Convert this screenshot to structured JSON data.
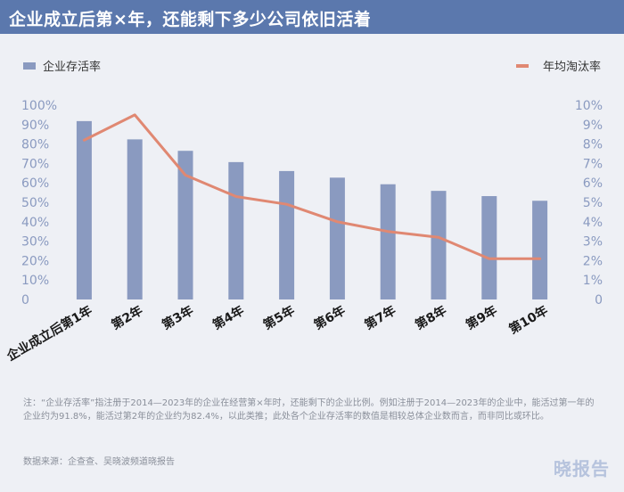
{
  "header": {
    "title": "企业成立后第×年，还能剩下多少公司依旧活着"
  },
  "chart_data": {
    "type": "bar+line",
    "categories": [
      "企业成立后第1年",
      "第2年",
      "第3年",
      "第4年",
      "第5年",
      "第6年",
      "第7年",
      "第8年",
      "第9年",
      "第10年"
    ],
    "series": [
      {
        "name": "企业存活率",
        "type": "bar",
        "axis": "left",
        "values": [
          91.8,
          82.4,
          76.5,
          70.7,
          66.1,
          62.7,
          59.3,
          55.9,
          53.2,
          50.8
        ]
      },
      {
        "name": "年均淘汰率",
        "type": "line",
        "axis": "right",
        "values": [
          8.2,
          9.5,
          6.4,
          5.3,
          4.9,
          4.0,
          3.5,
          3.2,
          2.1,
          2.1
        ]
      }
    ],
    "yleft_ticks": [
      "100%",
      "90%",
      "80%",
      "70%",
      "60%",
      "50%",
      "40%",
      "30%",
      "20%",
      "10%",
      "0"
    ],
    "yright_ticks": [
      "10%",
      "9%",
      "8%",
      "7%",
      "6%",
      "5%",
      "4%",
      "3%",
      "2%",
      "1%",
      "0"
    ],
    "yleft_lim": [
      0,
      100
    ],
    "yright_lim": [
      0,
      10
    ],
    "legend_placement": "top-left and top-right",
    "colors": {
      "bar": "#8a9ac0",
      "line": "#e08872",
      "header": "#5b78ad"
    }
  },
  "footnote": "注：“企业存活率”指注册于2014—2023年的企业在经营第×年时，还能剩下的企业比例。例如注册于2014—2023年的企业中，能活过第一年的企业约为91.8%，能活过第2年的企业约为82.4%，以此类推；此处各个企业存活率的数值是相较总体企业数而言，而非同比或环比。",
  "source": "数据来源：企查查、吴晓波频道晓报告",
  "brand": "晓报告"
}
